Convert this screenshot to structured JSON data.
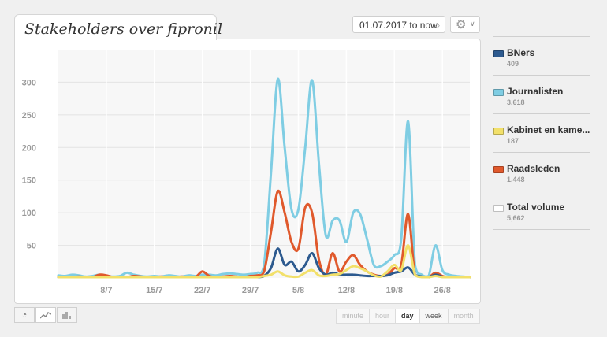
{
  "widget": {
    "title": "Stakeholders over fipronil",
    "date_range": "01.07.2017 to now",
    "icons": {
      "date_arrows": "double-chevron-icon",
      "settings": "gear-icon",
      "dropdown": "chevron-down-icon"
    }
  },
  "legend": [
    {
      "label": "BNers",
      "count": "409",
      "color": "#2d5a8f"
    },
    {
      "label": "Journalisten",
      "count": "3,618",
      "color": "#7fcde3"
    },
    {
      "label": "Kabinet en kame...",
      "count": "187",
      "color": "#f2e06a"
    },
    {
      "label": "Raadsleden",
      "count": "1,448",
      "color": "#e0592c"
    },
    {
      "label": "Total volume",
      "count": "5,662",
      "color": "#ffffff"
    }
  ],
  "chart_types": [
    "pie-chart-icon",
    "line-chart-icon",
    "bar-chart-icon"
  ],
  "granularity": {
    "options": [
      "minute",
      "hour",
      "day",
      "week",
      "month"
    ],
    "selected": "day",
    "enabled": [
      "day",
      "week"
    ]
  },
  "chart_data": {
    "type": "line",
    "x": [
      "1/7",
      "2/7",
      "3/7",
      "4/7",
      "5/7",
      "6/7",
      "7/7",
      "8/7",
      "9/7",
      "10/7",
      "11/7",
      "12/7",
      "13/7",
      "14/7",
      "15/7",
      "16/7",
      "17/7",
      "18/7",
      "19/7",
      "20/7",
      "21/7",
      "22/7",
      "23/7",
      "24/7",
      "25/7",
      "26/7",
      "27/7",
      "28/7",
      "29/7",
      "30/7",
      "31/7",
      "1/8",
      "2/8",
      "3/8",
      "4/8",
      "5/8",
      "6/8",
      "7/8",
      "8/8",
      "9/8",
      "10/8",
      "11/8",
      "12/8",
      "13/8",
      "14/8",
      "15/8",
      "16/8",
      "17/8",
      "18/8",
      "19/8",
      "20/8",
      "21/8",
      "22/8",
      "23/8",
      "24/8",
      "25/8",
      "26/8",
      "27/8",
      "28/8",
      "29/8",
      "30/8"
    ],
    "xticks": [
      "8/7",
      "15/7",
      "22/7",
      "29/7",
      "5/8",
      "12/8",
      "19/8",
      "26/8"
    ],
    "ylim": [
      0,
      350
    ],
    "yticks": [
      50,
      100,
      150,
      200,
      250,
      300
    ],
    "series": [
      {
        "name": "Journalisten",
        "color": "#7fcde3",
        "values": [
          4,
          3,
          5,
          4,
          2,
          3,
          5,
          3,
          2,
          3,
          8,
          5,
          3,
          2,
          3,
          2,
          4,
          3,
          2,
          4,
          3,
          5,
          5,
          4,
          6,
          7,
          6,
          5,
          6,
          8,
          20,
          160,
          305,
          200,
          105,
          105,
          200,
          303,
          175,
          65,
          88,
          88,
          55,
          100,
          98,
          60,
          20,
          18,
          25,
          35,
          60,
          240,
          20,
          5,
          3,
          50,
          12,
          5,
          3,
          2,
          1
        ]
      },
      {
        "name": "Raadsleden",
        "color": "#e0592c",
        "values": [
          1,
          1,
          1,
          2,
          1,
          1,
          5,
          4,
          1,
          1,
          1,
          3,
          2,
          1,
          1,
          2,
          1,
          1,
          2,
          1,
          1,
          10,
          3,
          1,
          2,
          3,
          2,
          1,
          3,
          4,
          10,
          70,
          133,
          100,
          55,
          45,
          108,
          100,
          28,
          5,
          38,
          10,
          25,
          35,
          20,
          10,
          5,
          3,
          5,
          15,
          20,
          98,
          5,
          2,
          1,
          8,
          3,
          1,
          1,
          1,
          1
        ]
      },
      {
        "name": "BNers",
        "color": "#2d5a8f",
        "values": [
          1,
          1,
          1,
          1,
          1,
          1,
          1,
          1,
          1,
          1,
          1,
          1,
          1,
          1,
          1,
          1,
          1,
          1,
          1,
          1,
          1,
          1,
          1,
          1,
          1,
          1,
          1,
          1,
          1,
          1,
          3,
          15,
          45,
          20,
          25,
          10,
          20,
          38,
          15,
          5,
          8,
          5,
          5,
          5,
          4,
          3,
          3,
          3,
          4,
          8,
          10,
          16,
          5,
          2,
          1,
          5,
          2,
          1,
          1,
          1,
          1
        ]
      },
      {
        "name": "Kabinet en kame...",
        "color": "#f2e06a",
        "values": [
          0,
          0,
          0,
          0,
          0,
          0,
          0,
          0,
          0,
          0,
          0,
          0,
          0,
          0,
          0,
          0,
          0,
          0,
          0,
          0,
          0,
          0,
          0,
          0,
          0,
          0,
          0,
          0,
          0,
          1,
          3,
          5,
          10,
          4,
          2,
          2,
          8,
          12,
          4,
          3,
          5,
          6,
          12,
          18,
          15,
          10,
          4,
          2,
          10,
          20,
          12,
          50,
          5,
          1,
          0,
          3,
          1,
          0,
          0,
          0,
          0
        ]
      }
    ]
  }
}
